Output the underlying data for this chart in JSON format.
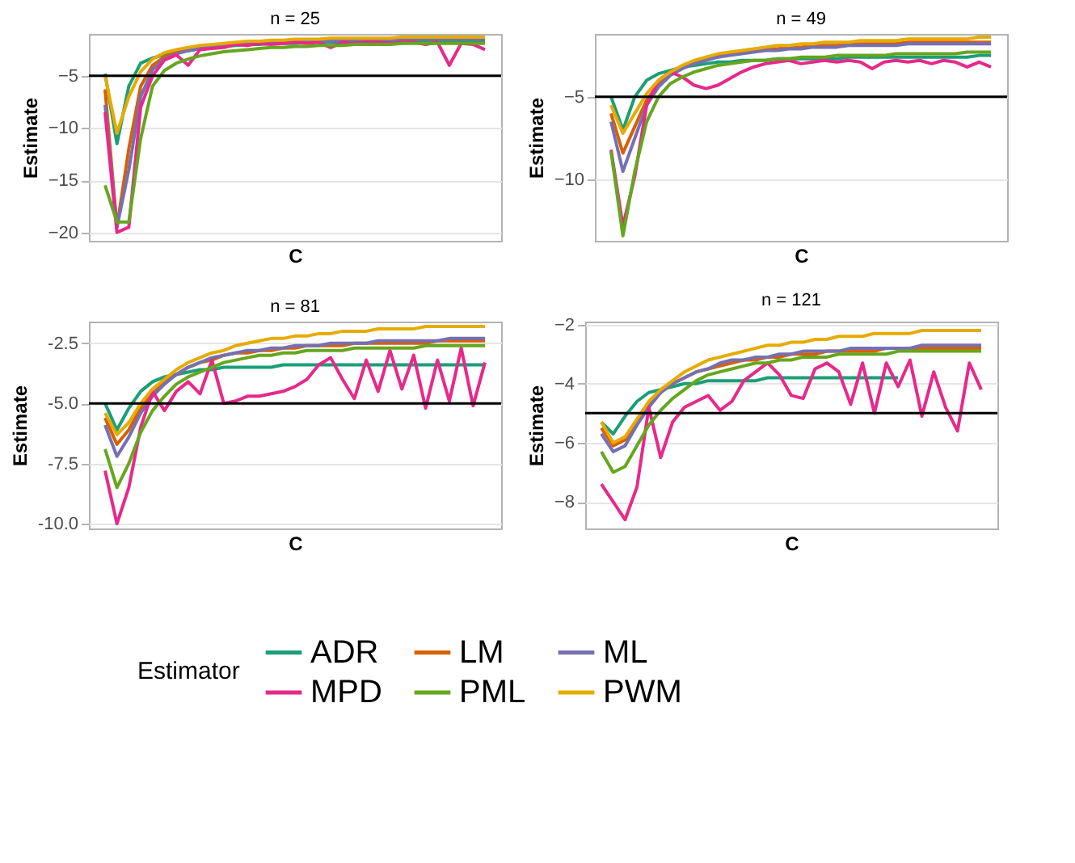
{
  "chart_data": [
    {
      "type": "line",
      "title": "n = 25",
      "xlabel": "C",
      "ylabel": "Estimate",
      "legend": "bottom",
      "legend_title": "Estimator",
      "grid": "y",
      "tick_labels": "y",
      "line_style": "solid",
      "categories": [
        null,
        null,
        null,
        null,
        null,
        null,
        null,
        null,
        null,
        null,
        null,
        null,
        null,
        null,
        null,
        null,
        null,
        null,
        null,
        null,
        null,
        null,
        null,
        null,
        null,
        null,
        null,
        null,
        null,
        null,
        null,
        null,
        null
      ],
      "ylim": [
        -20.8,
        -1
      ],
      "yticks": [
        -20,
        -15,
        -10,
        -5
      ],
      "ref_lines": [
        {
          "axis": "y",
          "value": -5,
          "color": "#000000"
        }
      ],
      "series": [
        {
          "name": "ADR",
          "color": "#1b9e77",
          "values": [
            -4.8,
            -11.5,
            -6,
            -3.8,
            -3.3,
            -3.0,
            -2.8,
            -2.6,
            -2.4,
            -2.3,
            -2.2,
            -2.1,
            -2.0,
            -2.0,
            -1.9,
            -1.9,
            -1.9,
            -1.8,
            -1.8,
            -1.8,
            -1.8,
            -1.8,
            -1.8,
            -1.8,
            -1.7,
            -1.7,
            -1.7,
            -1.7,
            -1.7,
            -1.7,
            -1.7,
            -1.7,
            -1.7
          ]
        },
        {
          "name": "LM",
          "color": "#d95f02",
          "values": [
            -6.3,
            -19.5,
            -12,
            -6,
            -4,
            -3.2,
            -2.8,
            -2.5,
            -2.3,
            -2.2,
            -2.1,
            -2.0,
            -1.9,
            -1.9,
            -1.8,
            -1.8,
            -1.7,
            -1.7,
            -1.7,
            -1.6,
            -1.6,
            null,
            null,
            null,
            null,
            null,
            null,
            null,
            null,
            null,
            null,
            null,
            null
          ]
        },
        {
          "name": "ML",
          "color": "#7570b3",
          "values": [
            -7.8,
            -19.5,
            -14,
            -7,
            -4.4,
            -3.4,
            -2.9,
            -2.6,
            -2.4,
            -2.2,
            -2.1,
            -2.0,
            -1.9,
            -1.9,
            -1.8,
            -1.8,
            -1.7,
            -1.7,
            -1.7,
            -1.7,
            -1.6,
            -1.6,
            -1.6,
            -1.6,
            -1.6,
            -1.6,
            -1.5,
            -1.5,
            -1.5,
            -1.5,
            -1.5,
            -1.5,
            -1.5
          ]
        },
        {
          "name": "MPD",
          "color": "#e7298a",
          "values": [
            -8.5,
            -20,
            -19.5,
            -8,
            -5,
            -3.5,
            -3.0,
            -4.0,
            -2.5,
            -2.4,
            -2.3,
            -2.0,
            -2.1,
            -1.9,
            -2.0,
            -1.9,
            -1.8,
            -1.9,
            -1.8,
            -2.3,
            -1.8,
            -1.9,
            -1.8,
            -1.8,
            -1.9,
            -1.8,
            -1.8,
            -2.0,
            -1.8,
            -4.0,
            -1.9,
            -2.0,
            -2.5
          ]
        },
        {
          "name": "PML",
          "color": "#66a61e",
          "values": [
            -15.5,
            -19,
            -19,
            -11,
            -6,
            -4.5,
            -3.8,
            -3.4,
            -3.1,
            -2.9,
            -2.7,
            -2.6,
            -2.5,
            -2.4,
            -2.3,
            -2.3,
            -2.2,
            -2.2,
            -2.1,
            -2.1,
            -2.1,
            -2.0,
            -2.0,
            -2.0,
            -2.0,
            -1.9,
            -1.9,
            -1.9,
            -1.9,
            -1.9,
            -1.9,
            -1.9,
            -1.9
          ]
        },
        {
          "name": "PWM",
          "color": "#e6ab02",
          "values": [
            -5,
            -10.5,
            -7,
            -4.6,
            -3.4,
            -2.8,
            -2.5,
            -2.3,
            -2.1,
            -2.0,
            -1.9,
            -1.8,
            -1.7,
            -1.7,
            -1.6,
            -1.6,
            -1.5,
            -1.5,
            -1.5,
            -1.4,
            -1.4,
            -1.4,
            -1.4,
            -1.4,
            -1.4,
            -1.3,
            -1.3,
            -1.3,
            -1.3,
            -1.3,
            -1.3,
            -1.3,
            -1.3
          ]
        }
      ]
    },
    {
      "type": "line",
      "title": "n = 49",
      "xlabel": "C",
      "ylabel": "Estimate",
      "grid": "y",
      "tick_labels": "y",
      "line_style": "solid",
      "categories": [
        null,
        null,
        null,
        null,
        null,
        null,
        null,
        null,
        null,
        null,
        null,
        null,
        null,
        null,
        null,
        null,
        null,
        null,
        null,
        null,
        null,
        null,
        null,
        null,
        null,
        null,
        null,
        null,
        null,
        null,
        null,
        null,
        null
      ],
      "ylim": [
        -13.7,
        -1.2
      ],
      "yticks": [
        -10,
        -5
      ],
      "ref_lines": [
        {
          "axis": "y",
          "value": -5,
          "color": "#000000"
        }
      ],
      "series": [
        {
          "name": "ADR",
          "color": "#1b9e77",
          "values": [
            -5,
            -7,
            -5,
            -4,
            -3.6,
            -3.4,
            -3.2,
            -3.1,
            -3.0,
            -2.9,
            -2.9,
            -2.8,
            -2.8,
            -2.8,
            -2.7,
            -2.7,
            -2.7,
            -2.7,
            -2.7,
            -2.7,
            -2.6,
            -2.6,
            -2.6,
            -2.6,
            -2.6,
            -2.6,
            -2.6,
            -2.6,
            -2.6,
            -2.6,
            -2.6,
            -2.5,
            -2.5
          ]
        },
        {
          "name": "LM",
          "color": "#d95f02",
          "values": [
            -6,
            -8.4,
            -6.8,
            -5.2,
            -4.2,
            -3.6,
            -3.2,
            -2.9,
            -2.7,
            -2.5,
            -2.4,
            -2.3,
            -2.2,
            -2.1,
            -2.1,
            -2.0,
            -2.0,
            -1.9,
            -1.9,
            -1.9,
            -1.8,
            -1.8,
            -1.8,
            -1.8,
            -1.8,
            -1.7,
            -1.7,
            -1.7,
            -1.7,
            -1.7,
            -1.7,
            -1.7,
            -1.7
          ]
        },
        {
          "name": "ML",
          "color": "#7570b3",
          "values": [
            -6.5,
            -9.5,
            -7.5,
            -5.5,
            -4.4,
            -3.7,
            -3.3,
            -3.0,
            -2.8,
            -2.6,
            -2.5,
            -2.4,
            -2.3,
            -2.2,
            -2.2,
            -2.1,
            -2.1,
            -2.0,
            -2.0,
            -2.0,
            -1.9,
            -1.9,
            -1.9,
            -1.9,
            -1.9,
            -1.8,
            -1.8,
            -1.8,
            -1.8,
            -1.8,
            -1.8,
            -1.8,
            -1.8
          ]
        },
        {
          "name": "MPD",
          "color": "#e7298a",
          "values": [
            -8.2,
            -12.8,
            -9.8,
            -5.5,
            -4.0,
            -3.5,
            -3.8,
            -4.3,
            -4.5,
            -4.3,
            -3.9,
            -3.5,
            -3.2,
            -3.0,
            -2.9,
            -2.8,
            -3.0,
            -2.9,
            -2.8,
            -2.9,
            -2.8,
            -2.9,
            -3.3,
            -2.9,
            -2.8,
            -2.9,
            -2.8,
            -3.0,
            -2.8,
            -2.9,
            -3.2,
            -2.9,
            -3.2
          ]
        },
        {
          "name": "PML",
          "color": "#66a61e",
          "values": [
            -8.3,
            -13.4,
            -9.5,
            -6.5,
            -5,
            -4.2,
            -3.8,
            -3.5,
            -3.3,
            -3.1,
            -3.0,
            -2.9,
            -2.8,
            -2.8,
            -2.7,
            -2.7,
            -2.6,
            -2.6,
            -2.6,
            -2.5,
            -2.5,
            -2.5,
            -2.5,
            -2.5,
            -2.4,
            -2.4,
            -2.4,
            -2.4,
            -2.4,
            -2.4,
            -2.3,
            -2.3,
            -2.3
          ]
        },
        {
          "name": "PWM",
          "color": "#e6ab02",
          "values": [
            -5.5,
            -7.2,
            -6,
            -4.8,
            -4.0,
            -3.5,
            -3.1,
            -2.8,
            -2.6,
            -2.4,
            -2.3,
            -2.2,
            -2.1,
            -2.0,
            -1.9,
            -1.9,
            -1.8,
            -1.8,
            -1.7,
            -1.7,
            -1.7,
            -1.6,
            -1.6,
            -1.6,
            -1.6,
            -1.5,
            -1.5,
            -1.5,
            -1.5,
            -1.5,
            -1.5,
            -1.4,
            -1.4
          ]
        }
      ]
    },
    {
      "type": "line",
      "title": "n = 81",
      "xlabel": "C",
      "ylabel": "Estimate",
      "grid": "y",
      "tick_labels": "y",
      "line_style": "solid",
      "categories": [
        null,
        null,
        null,
        null,
        null,
        null,
        null,
        null,
        null,
        null,
        null,
        null,
        null,
        null,
        null,
        null,
        null,
        null,
        null,
        null,
        null,
        null,
        null,
        null,
        null,
        null,
        null,
        null,
        null,
        null,
        null,
        null,
        null
      ],
      "ylim": [
        -10.2,
        -1.6
      ],
      "yticks": [
        {
          "value": -10,
          "label": "-10.0"
        },
        {
          "value": -7.5,
          "label": "-7.5"
        },
        {
          "value": -5,
          "label": "-5.0"
        },
        {
          "value": -2.5,
          "label": "-2.5"
        }
      ],
      "ref_lines": [
        {
          "axis": "y",
          "value": -5,
          "color": "#000000"
        }
      ],
      "series": [
        {
          "name": "ADR",
          "color": "#1b9e77",
          "values": [
            -5,
            -6.1,
            -5.2,
            -4.5,
            -4.1,
            -3.9,
            -3.8,
            -3.7,
            -3.6,
            -3.6,
            -3.5,
            -3.5,
            -3.5,
            -3.5,
            -3.5,
            -3.4,
            -3.4,
            -3.4,
            -3.4,
            -3.4,
            -3.4,
            -3.4,
            -3.4,
            -3.4,
            -3.4,
            -3.4,
            -3.4,
            -3.4,
            -3.4,
            -3.4,
            -3.4,
            -3.4,
            -3.4
          ]
        },
        {
          "name": "LM",
          "color": "#d95f02",
          "values": [
            -5.6,
            -6.7,
            -6.1,
            -5.2,
            -4.6,
            -4.1,
            -3.8,
            -3.5,
            -3.3,
            -3.2,
            -3.0,
            -2.9,
            -2.9,
            -2.8,
            -2.8,
            -2.7,
            -2.7,
            -2.6,
            -2.6,
            -2.6,
            -2.6,
            -2.5,
            -2.5,
            -2.5,
            -2.5,
            -2.5,
            -2.5,
            -2.5,
            -2.4,
            -2.4,
            -2.4,
            -2.4,
            -2.4
          ]
        },
        {
          "name": "ML",
          "color": "#7570b3",
          "values": [
            -5.9,
            -7.2,
            -6.4,
            -5.4,
            -4.7,
            -4.2,
            -3.8,
            -3.5,
            -3.3,
            -3.1,
            -3.0,
            -2.9,
            -2.8,
            -2.8,
            -2.7,
            -2.7,
            -2.6,
            -2.6,
            -2.6,
            -2.5,
            -2.5,
            -2.5,
            -2.5,
            -2.4,
            -2.4,
            -2.4,
            -2.4,
            -2.4,
            -2.4,
            -2.3,
            -2.3,
            -2.3,
            -2.3
          ]
        },
        {
          "name": "MPD",
          "color": "#e7298a",
          "values": [
            -7.8,
            -10,
            -8.5,
            -6,
            -4.5,
            -5.3,
            -4.5,
            -4.1,
            -4.6,
            -3.2,
            -5.0,
            -4.9,
            -4.7,
            -4.7,
            -4.6,
            -4.5,
            -4.3,
            -4.0,
            -3.4,
            -3.1,
            -4.0,
            -4.8,
            -3.2,
            -4.5,
            -2.8,
            -4.4,
            -3.0,
            -5.2,
            -3.2,
            -4.9,
            -2.7,
            -5.1,
            -3.3
          ]
        },
        {
          "name": "PML",
          "color": "#66a61e",
          "values": [
            -6.9,
            -8.5,
            -7.5,
            -6.2,
            -5.3,
            -4.7,
            -4.2,
            -3.9,
            -3.7,
            -3.5,
            -3.3,
            -3.2,
            -3.1,
            -3.0,
            -3.0,
            -2.9,
            -2.9,
            -2.8,
            -2.8,
            -2.8,
            -2.8,
            -2.7,
            -2.7,
            -2.7,
            -2.7,
            -2.7,
            -2.7,
            -2.6,
            -2.6,
            -2.6,
            -2.6,
            -2.6,
            -2.6
          ]
        },
        {
          "name": "PWM",
          "color": "#e6ab02",
          "values": [
            -5.4,
            -6.3,
            -5.8,
            -5.0,
            -4.4,
            -4.0,
            -3.6,
            -3.3,
            -3.1,
            -2.9,
            -2.8,
            -2.6,
            -2.5,
            -2.4,
            -2.3,
            -2.3,
            -2.2,
            -2.2,
            -2.1,
            -2.1,
            -2.0,
            -2.0,
            -2.0,
            -1.9,
            -1.9,
            -1.9,
            -1.9,
            -1.8,
            -1.8,
            -1.8,
            -1.8,
            -1.8,
            -1.8
          ]
        }
      ]
    },
    {
      "type": "line",
      "title": "n = 121",
      "xlabel": "C",
      "ylabel": "Estimate",
      "grid": "y",
      "tick_labels": "y",
      "line_style": "solid",
      "categories": [
        null,
        null,
        null,
        null,
        null,
        null,
        null,
        null,
        null,
        null,
        null,
        null,
        null,
        null,
        null,
        null,
        null,
        null,
        null,
        null,
        null,
        null,
        null,
        null,
        null,
        null,
        null,
        null,
        null,
        null,
        null,
        null,
        null
      ],
      "ylim": [
        -8.9,
        -1.9
      ],
      "yticks": [
        -8,
        -6,
        -4,
        -2
      ],
      "ref_lines": [
        {
          "axis": "y",
          "value": -5,
          "color": "#000000"
        }
      ],
      "series": [
        {
          "name": "ADR",
          "color": "#1b9e77",
          "values": [
            -5.3,
            -5.7,
            -5.1,
            -4.6,
            -4.3,
            -4.2,
            -4.1,
            -4.0,
            -4.0,
            -3.9,
            -3.9,
            -3.9,
            -3.9,
            -3.9,
            -3.8,
            -3.8,
            -3.8,
            -3.8,
            -3.8,
            -3.8,
            -3.8,
            -3.8,
            -3.8,
            -3.8,
            -3.8,
            -3.8,
            null,
            null,
            null,
            null,
            null,
            null,
            null
          ]
        },
        {
          "name": "LM",
          "color": "#d95f02",
          "values": [
            -5.5,
            -6.1,
            -5.9,
            -5.3,
            -4.7,
            -4.3,
            -4.0,
            -3.8,
            -3.6,
            -3.5,
            -3.4,
            -3.3,
            -3.2,
            -3.2,
            -3.1,
            -3.1,
            -3.0,
            -3.0,
            -3.0,
            -2.9,
            -2.9,
            -2.9,
            -2.9,
            -2.9,
            -2.8,
            -2.8,
            -2.8,
            -2.8,
            -2.8,
            -2.8,
            -2.8,
            -2.8,
            -2.8
          ]
        },
        {
          "name": "ML",
          "color": "#7570b3",
          "values": [
            -5.7,
            -6.3,
            -6.1,
            -5.4,
            -4.8,
            -4.3,
            -4.0,
            -3.8,
            -3.6,
            -3.5,
            -3.3,
            -3.2,
            -3.2,
            -3.1,
            -3.1,
            -3.0,
            -3.0,
            -2.9,
            -2.9,
            -2.9,
            -2.9,
            -2.8,
            -2.8,
            -2.8,
            -2.8,
            -2.8,
            -2.8,
            -2.7,
            -2.7,
            -2.7,
            -2.7,
            -2.7,
            -2.7
          ]
        },
        {
          "name": "MPD",
          "color": "#e7298a",
          "values": [
            -7.4,
            -8.0,
            -8.6,
            -7.5,
            -4.8,
            -6.5,
            -5.3,
            -4.8,
            -4.6,
            -4.4,
            -4.9,
            -4.6,
            -3.9,
            -3.6,
            -3.3,
            -3.7,
            -4.4,
            -4.5,
            -3.5,
            -3.3,
            -3.6,
            -4.7,
            -3.3,
            -5.0,
            -3.3,
            -4.1,
            -3.2,
            -5.1,
            -3.6,
            -4.8,
            -5.6,
            -3.3,
            -4.2
          ]
        },
        {
          "name": "PML",
          "color": "#66a61e",
          "values": [
            -6.3,
            -7.0,
            -6.8,
            -6.1,
            -5.4,
            -4.9,
            -4.5,
            -4.2,
            -3.9,
            -3.7,
            -3.6,
            -3.5,
            -3.4,
            -3.3,
            -3.3,
            -3.2,
            -3.2,
            -3.1,
            -3.1,
            -3.1,
            -3.0,
            -3.0,
            -3.0,
            -3.0,
            -3.0,
            -2.9,
            -2.9,
            -2.9,
            -2.9,
            -2.9,
            -2.9,
            -2.9,
            -2.9
          ]
        },
        {
          "name": "PWM",
          "color": "#e6ab02",
          "values": [
            -5.3,
            -6.0,
            -5.8,
            -5.2,
            -4.6,
            -4.2,
            -3.9,
            -3.6,
            -3.4,
            -3.2,
            -3.1,
            -3.0,
            -2.9,
            -2.8,
            -2.7,
            -2.7,
            -2.6,
            -2.6,
            -2.5,
            -2.5,
            -2.4,
            -2.4,
            -2.4,
            -2.3,
            -2.3,
            -2.3,
            -2.3,
            -2.2,
            -2.2,
            -2.2,
            -2.2,
            -2.2,
            -2.2
          ]
        }
      ]
    }
  ]
}
